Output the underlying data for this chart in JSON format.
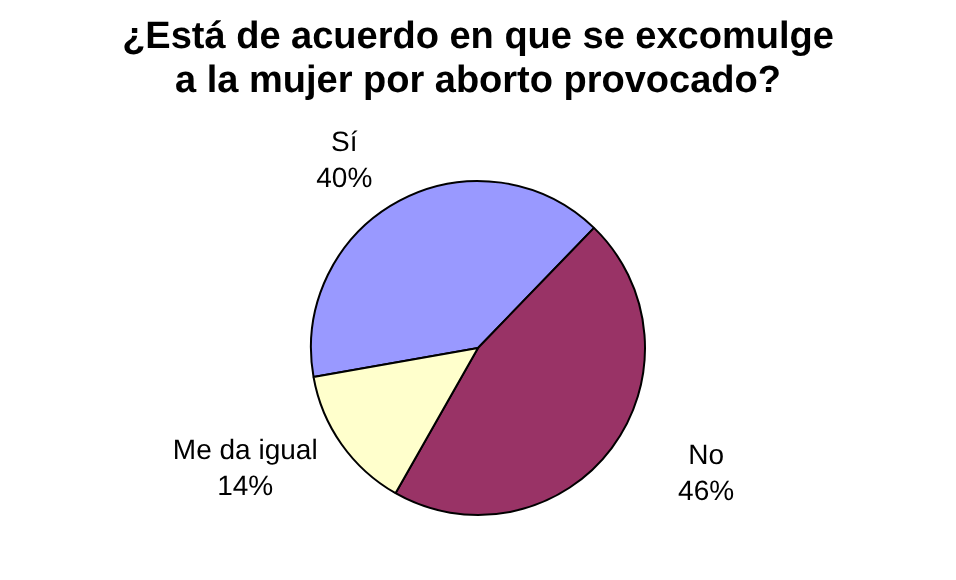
{
  "chart_data": {
    "type": "pie",
    "title": "¿Está de acuerdo en que se excomulge a la mujer por aborto provocado?",
    "categories": [
      "Sí",
      "No",
      "Me da igual"
    ],
    "values": [
      40,
      46,
      14
    ],
    "value_labels": [
      "40%",
      "46%",
      "14%"
    ],
    "colors": [
      "#9999ff",
      "#993366",
      "#ffffcc"
    ],
    "legend": false
  }
}
